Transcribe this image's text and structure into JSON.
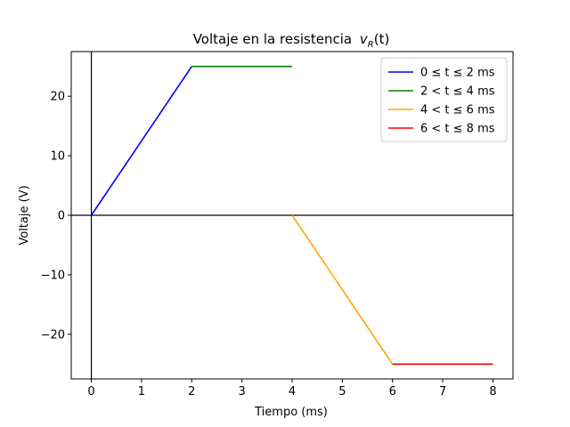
{
  "chart_data": {
    "type": "line",
    "title": "Voltaje en la resistencia",
    "title_math": "v",
    "title_sub": "R",
    "title_arg": "(t)",
    "xlabel": "Tiempo (ms)",
    "ylabel": "Voltaje (V)",
    "xlim": [
      -0.4,
      8.4
    ],
    "ylim": [
      -27.5,
      27.5
    ],
    "xticks": [
      0,
      1,
      2,
      3,
      4,
      5,
      6,
      7,
      8
    ],
    "yticks": [
      -20,
      -10,
      0,
      10,
      20
    ],
    "xtick_labels": [
      "0",
      "1",
      "2",
      "3",
      "4",
      "5",
      "6",
      "7",
      "8"
    ],
    "ytick_labels": [
      "−20",
      "−10",
      "0",
      "10",
      "20"
    ],
    "legend_position": "upper-right",
    "grid": false,
    "reference_lines": {
      "x": 0,
      "y": 0
    },
    "series": [
      {
        "name": "0 ≤ t ≤ 2 ms",
        "color": "#0000ff",
        "x": [
          0,
          2
        ],
        "y": [
          0,
          25
        ]
      },
      {
        "name": "2 < t ≤ 4 ms",
        "color": "#008000",
        "x": [
          2,
          4
        ],
        "y": [
          25,
          25
        ]
      },
      {
        "name": "4 < t ≤ 6 ms",
        "color": "#ffa500",
        "x": [
          4,
          6
        ],
        "y": [
          0,
          -25
        ]
      },
      {
        "name": "6 < t ≤ 8 ms",
        "color": "#ff0000",
        "x": [
          6,
          8
        ],
        "y": [
          -25,
          -25
        ]
      }
    ]
  }
}
